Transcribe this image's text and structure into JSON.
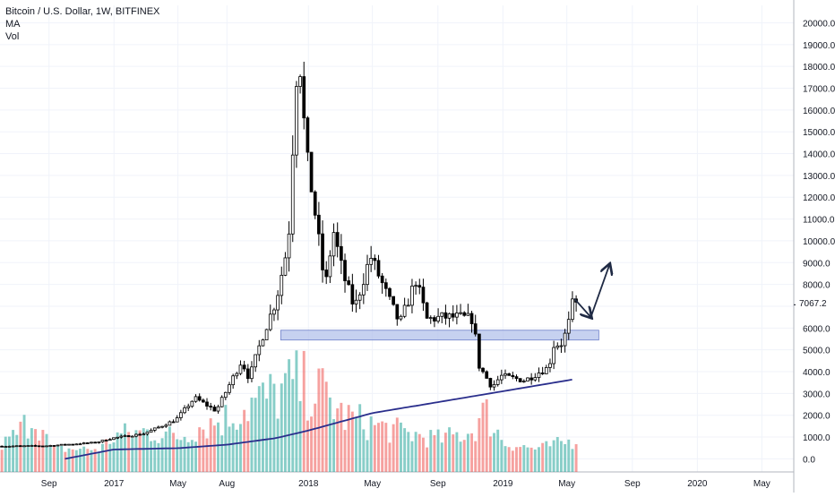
{
  "legend": {
    "title": "Bitcoin / U.S. Dollar, 1W, BITFINEX",
    "indicator_ma": "MA",
    "indicator_vol": "Vol"
  },
  "last_price_label": "7067.2",
  "colors": {
    "up": "#26a69a",
    "down": "#ef5350",
    "candle_body_up": "#ffffff",
    "candle_body_down": "#000000",
    "candle_wick": "#000000",
    "ma_line": "#2a2e8c",
    "support_zone": "#b3c1eb",
    "arrow": "#1f2a44",
    "grid": "#f0f3fa"
  },
  "chart_data": {
    "type": "candlestick",
    "title": "Bitcoin / U.S. Dollar, 1W, BITFINEX",
    "y_axis": {
      "ylim": [
        -600,
        20800
      ],
      "ticks": [
        0,
        1000,
        2000,
        3000,
        4000,
        5000,
        6000,
        7000,
        8000,
        9000,
        10000,
        11000,
        12000,
        13000,
        14000,
        15000,
        16000,
        17000,
        18000,
        19000,
        20000
      ],
      "tick_labels": [
        "0.0",
        "1000.0",
        "2000.0",
        "3000.0",
        "4000.0",
        "5000.0",
        "6000.0",
        "7000.0",
        "8000.0",
        "9000.0",
        "10000.0",
        "11000.0",
        "12000.0",
        "13000.0",
        "14000.0",
        "15000.0",
        "16000.0",
        "17000.0",
        "18000.0",
        "19000.0",
        "20000.0"
      ],
      "position": "right"
    },
    "x_axis": {
      "range": [
        "2016-06-01",
        "2020-06-30"
      ],
      "ticks": [
        "2016-09-01",
        "2017-01-01",
        "2017-05-01",
        "2017-08-01",
        "2018-01-01",
        "2018-05-01",
        "2018-09-01",
        "2019-01-01",
        "2019-05-01",
        "2019-09-01",
        "2020-01-01",
        "2020-05-01"
      ],
      "tick_labels": [
        "Sep",
        "2017",
        "May",
        "Aug",
        "2018",
        "May",
        "Sep",
        "2019",
        "May",
        "Sep",
        "2020",
        "May"
      ]
    },
    "grid": true,
    "legend_placement": "top-left",
    "last_price": 7067.2,
    "price_anchors": [
      [
        "2016-06-01",
        580
      ],
      [
        "2016-09-01",
        600
      ],
      [
        "2016-12-01",
        750
      ],
      [
        "2017-01-01",
        950
      ],
      [
        "2017-03-01",
        1150
      ],
      [
        "2017-05-01",
        1800
      ],
      [
        "2017-06-05",
        2800
      ],
      [
        "2017-07-15",
        2200
      ],
      [
        "2017-08-05",
        3200
      ],
      [
        "2017-09-01",
        4500
      ],
      [
        "2017-09-15",
        3700
      ],
      [
        "2017-10-10",
        5600
      ],
      [
        "2017-11-05",
        7300
      ],
      [
        "2017-11-28",
        10000
      ],
      [
        "2017-12-10",
        16500
      ],
      [
        "2017-12-17",
        19100
      ],
      [
        "2017-12-31",
        14000
      ],
      [
        "2018-01-14",
        11800
      ],
      [
        "2018-02-05",
        7800
      ],
      [
        "2018-02-20",
        10500
      ],
      [
        "2018-03-10",
        8500
      ],
      [
        "2018-04-01",
        6900
      ],
      [
        "2018-05-01",
        9300
      ],
      [
        "2018-06-01",
        7500
      ],
      [
        "2018-06-25",
        6200
      ],
      [
        "2018-07-25",
        8200
      ],
      [
        "2018-08-15",
        6400
      ],
      [
        "2018-09-15",
        6500
      ],
      [
        "2018-10-15",
        6500
      ],
      [
        "2018-11-10",
        6400
      ],
      [
        "2018-11-20",
        4300
      ],
      [
        "2018-12-15",
        3300
      ],
      [
        "2019-01-01",
        3800
      ],
      [
        "2019-02-15",
        3600
      ],
      [
        "2019-03-15",
        4000
      ],
      [
        "2019-04-01",
        4200
      ],
      [
        "2019-04-08",
        5200
      ],
      [
        "2019-04-25",
        5300
      ],
      [
        "2019-05-06",
        6000
      ],
      [
        "2019-05-15",
        7067
      ]
    ],
    "volume_profile": [
      [
        "2016-06-01",
        700
      ],
      [
        "2016-07-01",
        1300
      ],
      [
        "2016-08-01",
        2300
      ],
      [
        "2016-09-01",
        500
      ],
      [
        "2016-12-01",
        500
      ],
      [
        "2017-01-01",
        1200
      ],
      [
        "2017-03-01",
        1400
      ],
      [
        "2017-05-01",
        1100
      ],
      [
        "2017-06-01",
        1600
      ],
      [
        "2017-08-01",
        2100
      ],
      [
        "2017-09-01",
        2700
      ],
      [
        "2017-11-01",
        3300
      ],
      [
        "2017-12-01",
        3800
      ],
      [
        "2018-01-01",
        3600
      ],
      [
        "2018-02-01",
        3200
      ],
      [
        "2018-03-01",
        2200
      ],
      [
        "2018-05-01",
        1700
      ],
      [
        "2018-07-01",
        1300
      ],
      [
        "2018-09-01",
        1000
      ],
      [
        "2018-11-01",
        1400
      ],
      [
        "2018-11-25",
        2400
      ],
      [
        "2018-12-15",
        1500
      ],
      [
        "2019-01-01",
        800
      ],
      [
        "2019-03-01",
        500
      ],
      [
        "2019-04-01",
        700
      ],
      [
        "2019-05-15",
        950
      ]
    ],
    "moving_average": [
      [
        "2016-10-01",
        0
      ],
      [
        "2017-01-01",
        430
      ],
      [
        "2017-05-01",
        490
      ],
      [
        "2017-08-01",
        650
      ],
      [
        "2017-11-01",
        950
      ],
      [
        "2018-01-01",
        1300
      ],
      [
        "2018-05-01",
        2100
      ],
      [
        "2018-09-01",
        2600
      ],
      [
        "2019-01-01",
        3100
      ],
      [
        "2019-05-15",
        3650
      ]
    ],
    "annotations": [
      {
        "type": "zone",
        "from": "2017-11-10",
        "to": "2019-06-30",
        "low": 5450,
        "high": 5900
      },
      {
        "type": "arrow",
        "from": [
          "2019-05-15",
          7350
        ],
        "to": [
          "2019-06-15",
          6500
        ]
      },
      {
        "type": "arrow",
        "from": [
          "2019-06-15",
          6500
        ],
        "to": [
          "2019-07-20",
          8900
        ]
      }
    ]
  }
}
